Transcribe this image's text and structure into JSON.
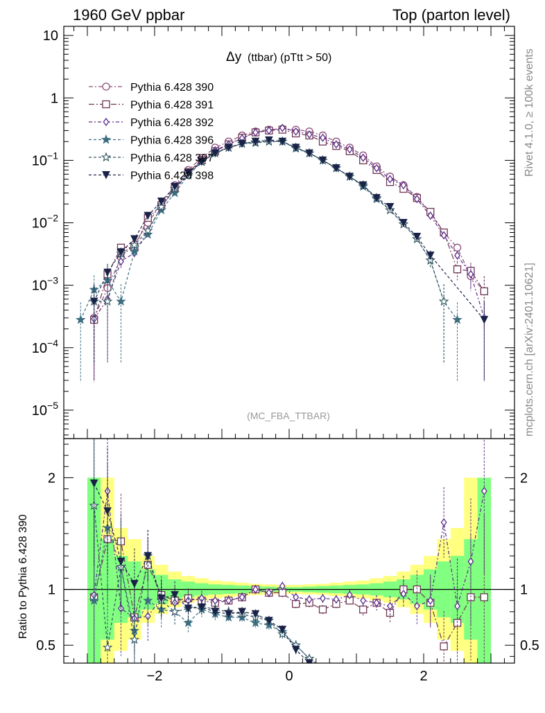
{
  "header": {
    "left": "1960 GeV ppbar",
    "right": "Top (parton level)"
  },
  "side_labels": {
    "rivet": "Rivet 4.1.0, ≥ 100k events",
    "mcplots": "mcplots.cern.ch [arXiv:2401.10621]"
  },
  "plot": {
    "title_main": "Δy",
    "title_sub": "(ttbar) (pTtt > 50)",
    "watermark": "(MC_FBA_TTBAR)"
  },
  "ratio_ylabel": "Ratio to Pythia 6.428 390",
  "colors": {
    "s390": "#8c4a78",
    "s391": "#6e3552",
    "s392": "#5a2a8a",
    "s396": "#3d6e80",
    "s397": "#2f5560",
    "s398": "#1a2248",
    "band_yellow": "#ffff80",
    "band_green": "#80ff80"
  },
  "chart_data": [
    {
      "type": "line",
      "title": "Δy (ttbar) (pTtt > 50)",
      "xlabel": "",
      "ylabel": "",
      "yscale": "log",
      "xlim": [
        -3.35,
        3.35
      ],
      "ylim": [
        3.5e-06,
        14
      ],
      "y_tick_labels": [
        "10",
        "1",
        "10^-1",
        "10^-2",
        "10^-3",
        "10^-4",
        "10^-5"
      ],
      "legend_position": "top-left",
      "series": [
        {
          "name": "Pythia 6.428 390",
          "marker": "circle",
          "x": [
            -2.9,
            -2.7,
            -2.5,
            -2.3,
            -2.1,
            -1.9,
            -1.7,
            -1.5,
            -1.3,
            -1.1,
            -0.9,
            -0.7,
            -0.5,
            -0.3,
            -0.1,
            0.1,
            0.3,
            0.5,
            0.7,
            0.9,
            1.1,
            1.3,
            1.5,
            1.7,
            1.9,
            2.1,
            2.3,
            2.5,
            2.7,
            2.9
          ],
          "y": [
            0.0003,
            0.0009,
            0.0028,
            0.0045,
            0.01,
            0.02,
            0.04,
            0.07,
            0.11,
            0.16,
            0.2,
            0.25,
            0.29,
            0.31,
            0.32,
            0.31,
            0.29,
            0.25,
            0.2,
            0.16,
            0.12,
            0.08,
            0.055,
            0.04,
            0.026,
            0.014,
            0.007,
            0.004,
            0.0014,
            0.0008
          ]
        },
        {
          "name": "Pythia 6.428 391",
          "marker": "square",
          "x": [
            -2.9,
            -2.7,
            -2.5,
            -2.3,
            -2.1,
            -1.9,
            -1.7,
            -1.5,
            -1.3,
            -1.1,
            -0.9,
            -0.7,
            -0.5,
            -0.3,
            -0.1,
            0.1,
            0.3,
            0.5,
            0.7,
            0.9,
            1.1,
            1.3,
            1.5,
            1.7,
            1.9,
            2.1,
            2.3,
            2.5,
            2.7,
            2.9
          ],
          "y": [
            0.00028,
            0.0015,
            0.004,
            0.004,
            0.012,
            0.019,
            0.037,
            0.065,
            0.1,
            0.14,
            0.18,
            0.23,
            0.28,
            0.3,
            0.31,
            0.27,
            0.25,
            0.2,
            0.17,
            0.14,
            0.1,
            0.07,
            0.045,
            0.035,
            0.025,
            0.015,
            0.007,
            0.0018,
            0.0017,
            0.0008
          ]
        },
        {
          "name": "Pythia 6.428 392",
          "marker": "diamond",
          "x": [
            -2.9,
            -2.7,
            -2.5,
            -2.3,
            -2.1,
            -1.9,
            -1.7,
            -1.5,
            -1.3,
            -1.1,
            -0.9,
            -0.7,
            -0.5,
            -0.3,
            -0.1,
            0.1,
            0.3,
            0.5,
            0.7,
            0.9,
            1.1,
            1.3,
            1.5,
            1.7,
            1.9,
            2.1,
            2.3,
            2.5,
            2.7,
            2.9
          ],
          "y": [
            0.00029,
            0.0006,
            0.0024,
            0.0033,
            0.0075,
            0.018,
            0.035,
            0.062,
            0.1,
            0.145,
            0.18,
            0.225,
            0.28,
            0.3,
            0.33,
            0.29,
            0.26,
            0.23,
            0.18,
            0.15,
            0.11,
            0.075,
            0.05,
            0.04,
            0.024,
            0.013,
            0.0063,
            0.003,
            0.0015,
            0.0003
          ]
        },
        {
          "name": "Pythia 6.428 396",
          "marker": "star",
          "x": [
            -3.1,
            -2.9,
            -2.7,
            -2.5,
            -2.3,
            -2.1,
            -1.9,
            -1.7,
            -1.5,
            -1.3,
            -1.1,
            -0.9,
            -0.7,
            -0.5,
            -0.3,
            -0.1,
            0.1,
            0.3,
            0.5,
            0.7,
            0.9,
            1.1,
            1.3,
            1.5,
            1.7,
            1.9,
            2.1,
            2.3,
            2.5
          ],
          "y": [
            0.00028,
            0.00085,
            0.0012,
            0.00055,
            0.0035,
            0.0065,
            0.016,
            0.03,
            0.058,
            0.095,
            0.135,
            0.16,
            0.185,
            0.19,
            0.2,
            0.2,
            0.155,
            0.13,
            0.1,
            0.075,
            0.055,
            0.038,
            0.024,
            0.016,
            0.0095,
            0.0055,
            0.0025,
            0.00055,
            0.00028
          ]
        },
        {
          "name": "Pythia 6.428 397",
          "marker": "star-open",
          "x": [
            -2.9,
            -2.7,
            -2.5,
            -2.3,
            -2.1,
            -1.9,
            -1.7,
            -1.5,
            -1.3,
            -1.1,
            -0.9,
            -0.7,
            -0.5,
            -0.3,
            -0.1,
            0.1,
            0.3,
            0.5,
            0.7,
            0.9,
            1.1,
            1.3,
            1.5,
            1.7,
            1.9,
            2.1,
            2.3
          ],
          "y": [
            0.00055,
            0.00055,
            0.0032,
            0.0044,
            0.0075,
            0.018,
            0.035,
            0.058,
            0.095,
            0.13,
            0.16,
            0.185,
            0.195,
            0.2,
            0.2,
            0.16,
            0.13,
            0.1,
            0.075,
            0.055,
            0.04,
            0.025,
            0.016,
            0.0095,
            0.0055,
            0.0025,
            0.00055
          ]
        },
        {
          "name": "Pythia 6.428 398",
          "marker": "triangle-down",
          "x": [
            -2.9,
            -2.7,
            -2.5,
            -2.3,
            -2.1,
            -1.9,
            -1.7,
            -1.5,
            -1.3,
            -1.1,
            -0.9,
            -0.7,
            -0.5,
            -0.3,
            -0.1,
            0.1,
            0.3,
            0.5,
            0.7,
            0.9,
            1.1,
            1.3,
            1.5,
            1.7,
            1.9,
            2.1,
            2.9
          ],
          "y": [
            0.00055,
            0.0016,
            0.0034,
            0.0055,
            0.013,
            0.022,
            0.038,
            0.063,
            0.095,
            0.13,
            0.16,
            0.185,
            0.2,
            0.21,
            0.2,
            0.16,
            0.13,
            0.1,
            0.075,
            0.055,
            0.04,
            0.025,
            0.018,
            0.01,
            0.006,
            0.003,
            0.00028
          ]
        }
      ]
    },
    {
      "type": "line",
      "title": "",
      "xlabel": "",
      "ylabel": "Ratio to Pythia 6.428 390",
      "xlim": [
        -3.35,
        3.35
      ],
      "ylim": [
        0.34,
        2.35
      ],
      "x_ticks": [
        -2,
        0,
        2
      ],
      "y_ticks": [
        0.5,
        1,
        2
      ],
      "bands": {
        "x_edges": [
          -3.0,
          -2.8,
          -2.6,
          -2.4,
          -2.2,
          -2.0,
          -1.8,
          -1.6,
          -1.4,
          -1.2,
          -1.0,
          -0.8,
          -0.6,
          -0.4,
          -0.2,
          0.0,
          0.2,
          0.4,
          0.6,
          0.8,
          1.0,
          1.2,
          1.4,
          1.6,
          1.8,
          2.0,
          2.2,
          2.4,
          2.6,
          2.8,
          3.0
        ],
        "yellow_half_width": [
          1.0,
          1.0,
          0.55,
          0.45,
          0.3,
          0.22,
          0.16,
          0.12,
          0.1,
          0.08,
          0.07,
          0.06,
          0.05,
          0.045,
          0.04,
          0.04,
          0.045,
          0.05,
          0.06,
          0.07,
          0.08,
          0.1,
          0.12,
          0.16,
          0.22,
          0.3,
          0.45,
          0.55,
          1.0,
          1.0
        ],
        "green_half_width": [
          1.0,
          0.45,
          0.3,
          0.25,
          0.18,
          0.13,
          0.09,
          0.07,
          0.055,
          0.045,
          0.04,
          0.035,
          0.03,
          0.025,
          0.02,
          0.02,
          0.025,
          0.03,
          0.035,
          0.04,
          0.045,
          0.055,
          0.07,
          0.09,
          0.13,
          0.18,
          0.25,
          0.3,
          0.45,
          1.0
        ]
      },
      "series": [
        {
          "name": "Pythia 6.428 391",
          "x": [
            -2.9,
            -2.7,
            -2.5,
            -2.3,
            -2.1,
            -1.9,
            -1.7,
            -1.5,
            -1.3,
            -1.1,
            -0.9,
            -0.7,
            -0.5,
            -0.3,
            -0.1,
            0.1,
            0.3,
            0.5,
            0.7,
            0.9,
            1.1,
            1.3,
            1.5,
            1.7,
            1.9,
            2.1,
            2.3,
            2.5,
            2.7,
            2.9
          ],
          "y": [
            0.93,
            1.45,
            1.43,
            0.75,
            1.22,
            0.95,
            0.9,
            0.92,
            0.9,
            0.88,
            0.9,
            0.93,
            1.0,
            0.97,
            0.97,
            0.87,
            0.88,
            0.82,
            0.87,
            0.9,
            0.82,
            0.88,
            0.79,
            1.0,
            1.0,
            0.88,
            0.49,
            0.7,
            0.93,
            0.93
          ]
        },
        {
          "name": "Pythia 6.428 392",
          "x": [
            -2.9,
            -2.7,
            -2.5,
            -2.3,
            -2.1,
            -1.9,
            -1.7,
            -1.5,
            -1.3,
            -1.1,
            -0.9,
            -0.7,
            -0.5,
            -0.3,
            -0.1,
            0.1,
            0.3,
            0.5,
            0.7,
            0.9,
            1.1,
            1.3,
            1.5,
            1.7,
            1.9,
            2.1,
            2.3,
            2.5,
            2.7,
            2.9
          ],
          "y": [
            0.95,
            1.88,
            0.83,
            0.74,
            0.76,
            0.92,
            0.88,
            0.9,
            0.92,
            0.9,
            0.9,
            0.93,
            1.0,
            0.97,
            1.03,
            0.93,
            0.91,
            0.92,
            0.91,
            0.95,
            0.9,
            0.88,
            0.85,
            0.96,
            0.85,
            0.9,
            1.6,
            0.85,
            1.25,
            1.88
          ]
        },
        {
          "name": "Pythia 6.428 396",
          "x": [
            -2.9,
            -2.7,
            -2.5,
            -2.3,
            -2.1,
            -1.9,
            -1.7,
            -1.5,
            -1.3,
            -1.1,
            -0.9,
            -0.7,
            -0.5,
            -0.3,
            -0.1,
            0.1,
            0.3,
            0.5
          ],
          "y": [
            0.9,
            1.55,
            1.2,
            0.63,
            0.9,
            0.82,
            0.8,
            0.7,
            0.82,
            0.78,
            0.75,
            0.75,
            0.7,
            0.68,
            0.62,
            0.5,
            0.38,
            0.3
          ]
        },
        {
          "name": "Pythia 6.428 397",
          "x": [
            -2.9,
            -2.7,
            -2.5,
            -2.3,
            -2.1,
            -1.9,
            -1.7,
            -1.5,
            -1.3,
            -1.1,
            -0.9,
            -0.7,
            -0.5,
            -0.3,
            -0.1,
            0.1,
            0.3
          ],
          "y": [
            1.75,
            0.48,
            1.2,
            0.55,
            1.3,
            0.9,
            0.8,
            0.83,
            0.85,
            0.82,
            0.8,
            0.78,
            0.75,
            0.72,
            0.6,
            0.5,
            0.38
          ]
        },
        {
          "name": "Pythia 6.428 398",
          "x": [
            -2.9,
            -2.7,
            -2.5,
            -2.3,
            -2.1,
            -1.9,
            -1.7,
            -1.5,
            -1.3,
            -1.1,
            -0.9,
            -0.7,
            -0.5,
            -0.3,
            -0.1,
            0.1,
            0.3
          ],
          "y": [
            1.95,
            1.7,
            1.25,
            1.05,
            1.3,
            0.92,
            0.95,
            0.83,
            0.84,
            0.8,
            0.78,
            0.8,
            0.78,
            0.72,
            0.64,
            0.46,
            0.34
          ]
        }
      ]
    }
  ]
}
